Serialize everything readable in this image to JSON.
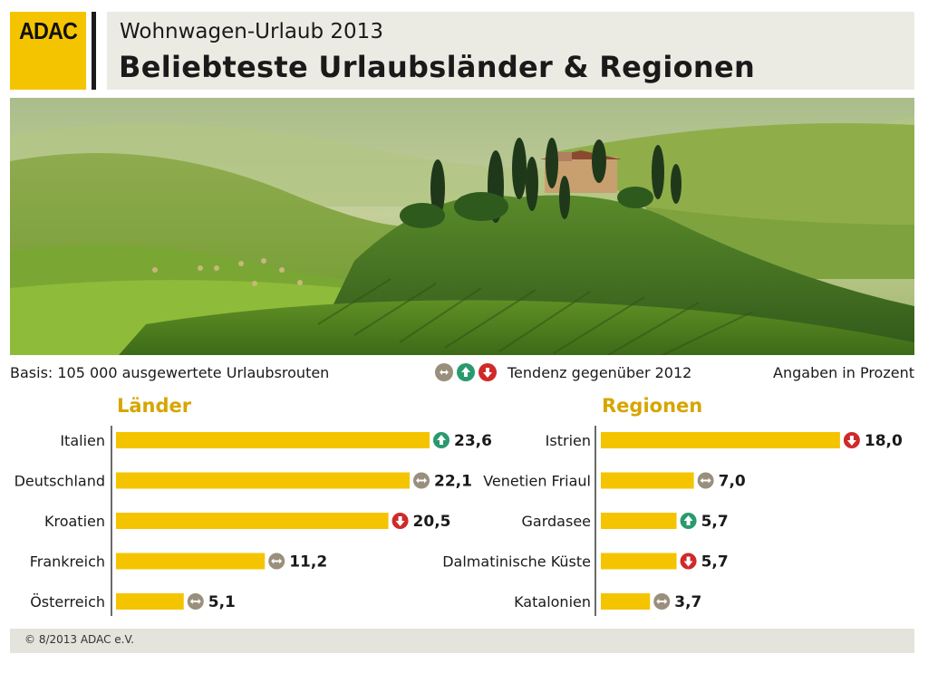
{
  "brand": {
    "logo": "ADAC",
    "color": "#f5c400"
  },
  "header": {
    "subtitle": "Wohnwagen-Urlaub 2013",
    "title": "Beliebteste Urlaubsländer & Regionen"
  },
  "info": {
    "basis": "Basis: 105 000 ausgewertete Urlaubsrouten",
    "tendency": "Tendenz gegenüber 2012",
    "unit": "Angaben in Prozent"
  },
  "icons": {
    "neutral": "arrows-left-right-icon",
    "up": "arrow-up-icon",
    "down": "arrow-down-icon",
    "colors": {
      "neutral": "#9a8f7c",
      "up": "#2a9a6e",
      "down": "#cf2a2a"
    }
  },
  "chart_data": [
    {
      "type": "bar",
      "orientation": "horizontal",
      "title": "Länder",
      "categories": [
        "Italien",
        "Deutschland",
        "Kroatien",
        "Frankreich",
        "Österreich"
      ],
      "values": [
        23.6,
        22.1,
        20.5,
        11.2,
        5.1
      ],
      "value_labels": [
        "23,6",
        "22,1",
        "20,5",
        "11,2",
        "5,1"
      ],
      "trend": [
        "up",
        "neutral",
        "down",
        "neutral",
        "neutral"
      ],
      "bar_color": "#f5c400"
    },
    {
      "type": "bar",
      "orientation": "horizontal",
      "title": "Regionen",
      "categories": [
        "Istrien",
        "Venetien Friaul",
        "Gardasee",
        "Dalmatinische Küste",
        "Katalonien"
      ],
      "values": [
        18.0,
        7.0,
        5.7,
        5.7,
        3.7
      ],
      "value_labels": [
        "18,0",
        "7,0",
        "5,7",
        "5,7",
        "3,7"
      ],
      "trend": [
        "down",
        "neutral",
        "up",
        "down",
        "neutral"
      ],
      "bar_color": "#f5c400"
    }
  ],
  "footer": {
    "copyright": "© 8/2013 ADAC e.V."
  }
}
